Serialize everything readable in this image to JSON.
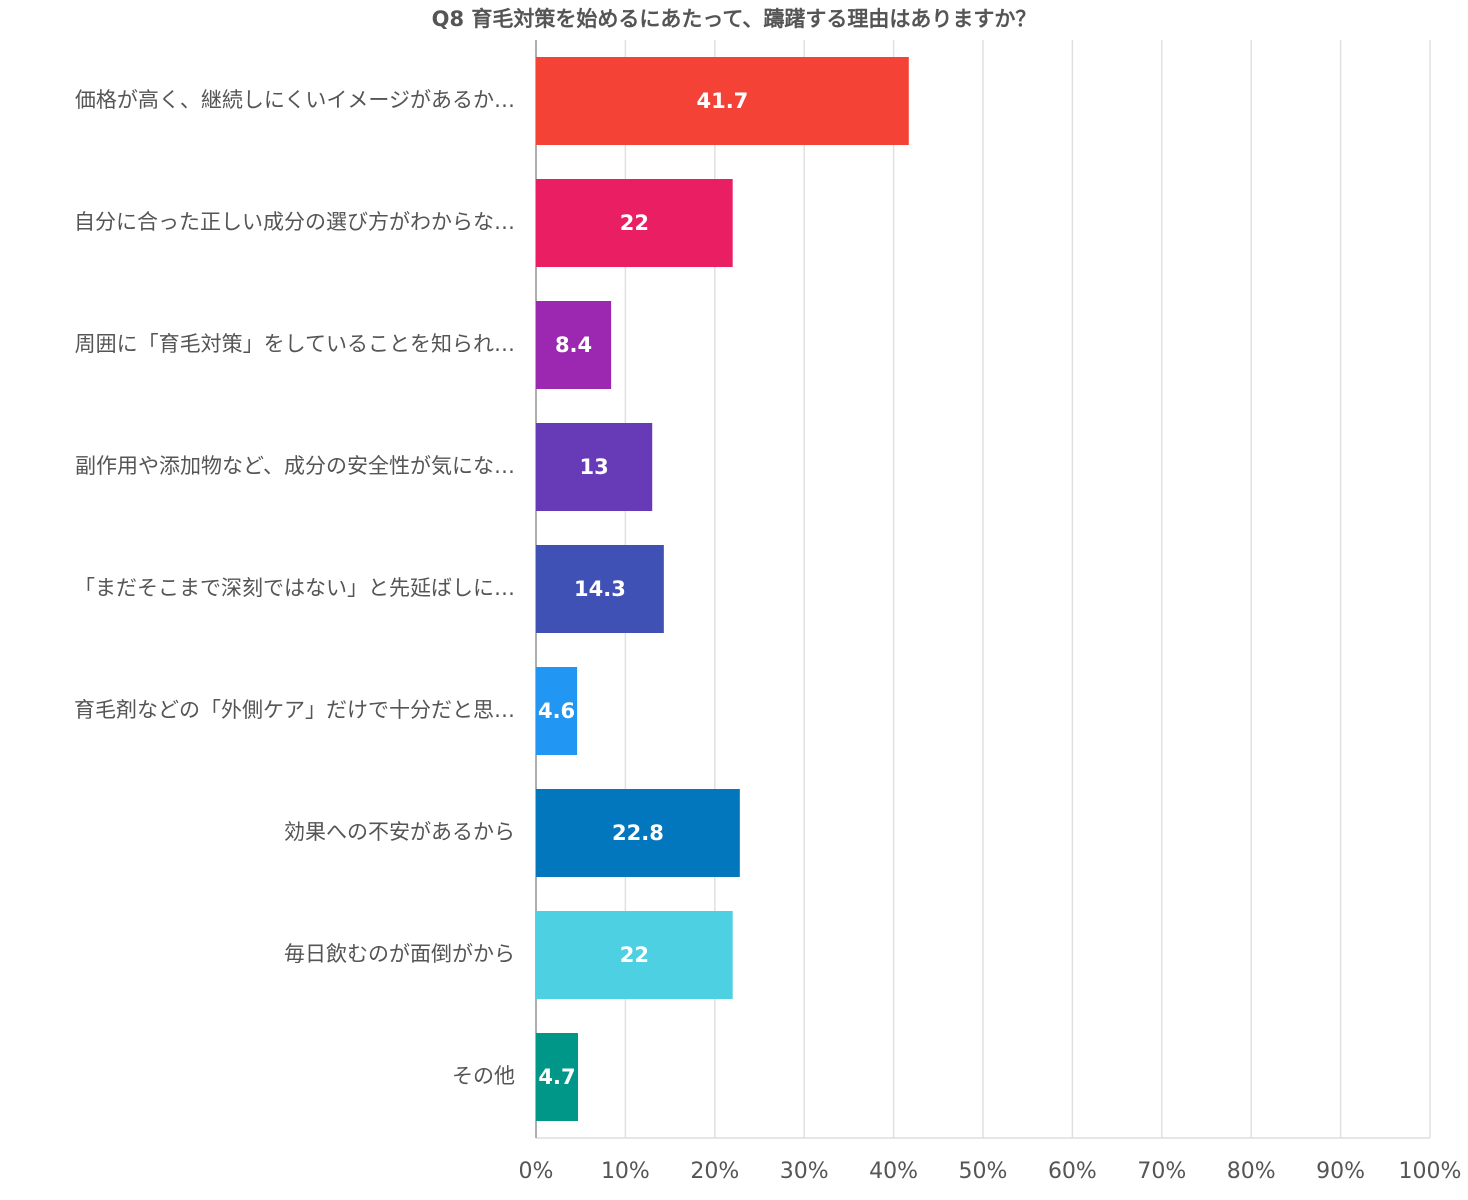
{
  "chart_data": {
    "type": "bar",
    "orientation": "horizontal",
    "title": "Q8 育毛対策を始めるにあたって、躊躇する理由はありますか？",
    "categories": [
      "価格が高く、継続しにくいイメージがあるか…",
      "自分に合った正しい成分の選び方がわからな…",
      "周囲に「育毛対策」をしていることを知られ…",
      "副作用や添加物など、成分の安全性が気にな…",
      "「まだそこまで深刻ではない」と先延ばしに…",
      "育毛剤などの「外側ケア」だけで十分だと思…",
      "効果への不安があるから",
      "毎日飲むのが面倒がから",
      "その他"
    ],
    "values": [
      41.7,
      22,
      8.4,
      13,
      14.3,
      4.6,
      22.8,
      22,
      4.7
    ],
    "colors": [
      "#f44336",
      "#e91e63",
      "#9c27b0",
      "#673ab7",
      "#3f51b5",
      "#2196f3",
      "#0277bd",
      "#4dd0e1",
      "#009688"
    ],
    "xlim": [
      0,
      100
    ],
    "xticks": [
      {
        "value": 0,
        "label": "0%"
      },
      {
        "value": 10,
        "label": "10%"
      },
      {
        "value": 20,
        "label": "20%"
      },
      {
        "value": 30,
        "label": "30%"
      },
      {
        "value": 40,
        "label": "40%"
      },
      {
        "value": 50,
        "label": "50%"
      },
      {
        "value": 60,
        "label": "60%"
      },
      {
        "value": 70,
        "label": "70%"
      },
      {
        "value": 80,
        "label": "80%"
      },
      {
        "value": 90,
        "label": "90%"
      },
      {
        "value": 100,
        "label": "100%"
      }
    ],
    "grid": true
  }
}
